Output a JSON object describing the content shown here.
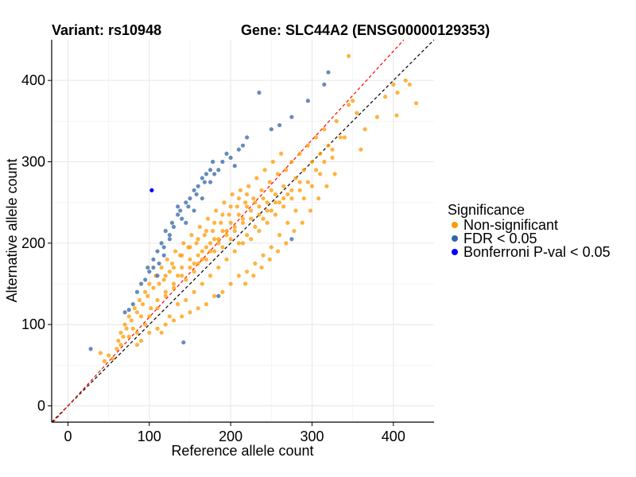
{
  "chart_data": {
    "type": "scatter",
    "title_left": "Variant: rs10948",
    "title_right": "Gene: SLC44A2 (ENSG00000129353)",
    "xlabel": "Reference allele count",
    "ylabel": "Alternative allele count",
    "xlim": [
      -20,
      450
    ],
    "ylim": [
      -20,
      450
    ],
    "x_ticks": [
      0,
      100,
      200,
      300,
      400
    ],
    "y_ticks": [
      0,
      100,
      200,
      300,
      400
    ],
    "grid": true,
    "legend": {
      "title": "Significance",
      "placement": "right",
      "entries": [
        {
          "key": "nonsig",
          "label": "Non-significant",
          "color": "#FF9900"
        },
        {
          "key": "fdr",
          "label": "FDR < 0.05",
          "color": "#3366A3"
        },
        {
          "key": "bonf",
          "label": "Bonferroni P-val < 0.05",
          "color": "#0000FF"
        }
      ]
    },
    "reference_lines": [
      {
        "name": "identity",
        "slope": 1.0,
        "intercept": 0,
        "color": "#000000",
        "dash": "dashed"
      },
      {
        "name": "fit",
        "slope": 1.09,
        "intercept": 0,
        "color": "#FF0000",
        "dash": "dashed"
      }
    ],
    "series": [
      {
        "name": "Non-significant",
        "color": "#FF9900",
        "points": [
          [
            40,
            65
          ],
          [
            45,
            55
          ],
          [
            50,
            62
          ],
          [
            55,
            58
          ],
          [
            60,
            70
          ],
          [
            62,
            80
          ],
          [
            65,
            90
          ],
          [
            68,
            85
          ],
          [
            70,
            100
          ],
          [
            72,
            95
          ],
          [
            75,
            110
          ],
          [
            78,
            105
          ],
          [
            80,
            95
          ],
          [
            82,
            120
          ],
          [
            85,
            115
          ],
          [
            88,
            130
          ],
          [
            90,
            110
          ],
          [
            92,
            125
          ],
          [
            95,
            140
          ],
          [
            98,
            135
          ],
          [
            100,
            150
          ],
          [
            102,
            120
          ],
          [
            105,
            145
          ],
          [
            108,
            160
          ],
          [
            110,
            130
          ],
          [
            112,
            150
          ],
          [
            115,
            170
          ],
          [
            118,
            155
          ],
          [
            120,
            140
          ],
          [
            122,
            180
          ],
          [
            125,
            165
          ],
          [
            128,
            175
          ],
          [
            130,
            150
          ],
          [
            132,
            190
          ],
          [
            135,
            160
          ],
          [
            138,
            185
          ],
          [
            140,
            170
          ],
          [
            142,
            200
          ],
          [
            145,
            155
          ],
          [
            148,
            195
          ],
          [
            150,
            180
          ],
          [
            152,
            210
          ],
          [
            155,
            165
          ],
          [
            158,
            200
          ],
          [
            160,
            175
          ],
          [
            162,
            220
          ],
          [
            165,
            190
          ],
          [
            168,
            210
          ],
          [
            170,
            180
          ],
          [
            172,
            230
          ],
          [
            175,
            200
          ],
          [
            178,
            215
          ],
          [
            180,
            190
          ],
          [
            182,
            240
          ],
          [
            185,
            205
          ],
          [
            188,
            225
          ],
          [
            190,
            195
          ],
          [
            192,
            250
          ],
          [
            195,
            215
          ],
          [
            198,
            235
          ],
          [
            200,
            205
          ],
          [
            202,
            260
          ],
          [
            205,
            220
          ],
          [
            208,
            245
          ],
          [
            210,
            200
          ],
          [
            212,
            265
          ],
          [
            215,
            230
          ],
          [
            218,
            250
          ],
          [
            220,
            210
          ],
          [
            222,
            270
          ],
          [
            225,
            240
          ],
          [
            228,
            255
          ],
          [
            230,
            220
          ],
          [
            232,
            280
          ],
          [
            235,
            245
          ],
          [
            238,
            265
          ],
          [
            240,
            230
          ],
          [
            242,
            290
          ],
          [
            245,
            250
          ],
          [
            248,
            275
          ],
          [
            250,
            240
          ],
          [
            252,
            300
          ],
          [
            255,
            260
          ],
          [
            258,
            285
          ],
          [
            260,
            250
          ],
          [
            262,
            310
          ],
          [
            265,
            270
          ],
          [
            268,
            290
          ],
          [
            270,
            260
          ],
          [
            275,
            300
          ],
          [
            280,
            280
          ],
          [
            285,
            310
          ],
          [
            290,
            290
          ],
          [
            295,
            320
          ],
          [
            300,
            300
          ],
          [
            305,
            330
          ],
          [
            310,
            310
          ],
          [
            315,
            340
          ],
          [
            320,
            320
          ],
          [
            330,
            350
          ],
          [
            340,
            330
          ],
          [
            345,
            370
          ],
          [
            350,
            375
          ],
          [
            355,
            360
          ],
          [
            360,
            315
          ],
          [
            365,
            340
          ],
          [
            380,
            355
          ],
          [
            390,
            380
          ],
          [
            400,
            395
          ],
          [
            405,
            385
          ],
          [
            415,
            400
          ],
          [
            420,
            395
          ],
          [
            428,
            372
          ],
          [
            404,
            357
          ],
          [
            345,
            430
          ],
          [
            335,
            330
          ],
          [
            325,
            305
          ],
          [
            310,
            285
          ],
          [
            300,
            270
          ],
          [
            290,
            255
          ],
          [
            280,
            240
          ],
          [
            270,
            225
          ],
          [
            260,
            210
          ],
          [
            250,
            195
          ],
          [
            240,
            185
          ],
          [
            230,
            175
          ],
          [
            220,
            165
          ],
          [
            210,
            160
          ],
          [
            200,
            150
          ],
          [
            190,
            140
          ],
          [
            180,
            135
          ],
          [
            170,
            125
          ],
          [
            160,
            120
          ],
          [
            150,
            115
          ],
          [
            140,
            110
          ],
          [
            130,
            105
          ],
          [
            120,
            100
          ],
          [
            110,
            95
          ],
          [
            100,
            90
          ],
          [
            90,
            80
          ],
          [
            85,
            75
          ],
          [
            115,
            90
          ],
          [
            125,
            110
          ],
          [
            135,
            125
          ],
          [
            145,
            130
          ],
          [
            155,
            140
          ],
          [
            165,
            150
          ],
          [
            175,
            160
          ],
          [
            185,
            170
          ],
          [
            195,
            180
          ],
          [
            205,
            190
          ],
          [
            215,
            200
          ],
          [
            225,
            205
          ],
          [
            235,
            215
          ],
          [
            245,
            225
          ],
          [
            255,
            235
          ],
          [
            265,
            245
          ],
          [
            275,
            255
          ],
          [
            285,
            265
          ],
          [
            295,
            275
          ],
          [
            305,
            290
          ],
          [
            315,
            300
          ],
          [
            325,
            315
          ],
          [
            218,
            150
          ],
          [
            228,
            160
          ],
          [
            238,
            170
          ],
          [
            248,
            180
          ],
          [
            258,
            190
          ],
          [
            268,
            200
          ],
          [
            278,
            215
          ],
          [
            288,
            225
          ],
          [
            298,
            240
          ],
          [
            308,
            255
          ],
          [
            318,
            270
          ],
          [
            328,
            285
          ],
          [
            120,
            160
          ],
          [
            130,
            170
          ],
          [
            140,
            185
          ],
          [
            150,
            195
          ],
          [
            160,
            205
          ],
          [
            170,
            215
          ],
          [
            180,
            225
          ],
          [
            190,
            235
          ],
          [
            200,
            245
          ],
          [
            210,
            255
          ],
          [
            220,
            260
          ],
          [
            160,
            185
          ],
          [
            170,
            195
          ],
          [
            180,
            205
          ],
          [
            190,
            215
          ],
          [
            200,
            225
          ],
          [
            210,
            235
          ],
          [
            220,
            245
          ],
          [
            230,
            250
          ],
          [
            240,
            255
          ],
          [
            250,
            265
          ],
          [
            150,
            170
          ],
          [
            140,
            160
          ],
          [
            130,
            145
          ],
          [
            120,
            135
          ],
          [
            110,
            120
          ],
          [
            100,
            110
          ],
          [
            95,
            100
          ],
          [
            85,
            90
          ],
          [
            75,
            85
          ],
          [
            65,
            75
          ],
          [
            155,
            175
          ],
          [
            165,
            180
          ],
          [
            175,
            190
          ],
          [
            185,
            200
          ],
          [
            195,
            210
          ],
          [
            205,
            215
          ],
          [
            215,
            225
          ],
          [
            225,
            230
          ],
          [
            235,
            235
          ],
          [
            245,
            240
          ],
          [
            255,
            250
          ],
          [
            265,
            255
          ],
          [
            275,
            265
          ],
          [
            285,
            275
          ]
        ]
      },
      {
        "name": "FDR < 0.05",
        "color": "#3366A3",
        "points": [
          [
            28,
            70
          ],
          [
            70,
            115
          ],
          [
            75,
            118
          ],
          [
            80,
            125
          ],
          [
            85,
            140
          ],
          [
            90,
            150
          ],
          [
            95,
            155
          ],
          [
            98,
            170
          ],
          [
            100,
            165
          ],
          [
            105,
            180
          ],
          [
            110,
            190
          ],
          [
            112,
            175
          ],
          [
            115,
            200
          ],
          [
            118,
            195
          ],
          [
            120,
            215
          ],
          [
            125,
            210
          ],
          [
            128,
            225
          ],
          [
            130,
            220
          ],
          [
            135,
            235
          ],
          [
            138,
            240
          ],
          [
            140,
            230
          ],
          [
            145,
            250
          ],
          [
            148,
            245
          ],
          [
            150,
            255
          ],
          [
            155,
            265
          ],
          [
            158,
            260
          ],
          [
            160,
            270
          ],
          [
            165,
            280
          ],
          [
            168,
            275
          ],
          [
            170,
            285
          ],
          [
            175,
            290
          ],
          [
            178,
            300
          ],
          [
            180,
            285
          ],
          [
            185,
            290
          ],
          [
            190,
            300
          ],
          [
            195,
            310
          ],
          [
            200,
            305
          ],
          [
            205,
            295
          ],
          [
            210,
            315
          ],
          [
            215,
            320
          ],
          [
            220,
            330
          ],
          [
            235,
            385
          ],
          [
            250,
            340
          ],
          [
            260,
            345
          ],
          [
            275,
            355
          ],
          [
            295,
            375
          ],
          [
            315,
            395
          ],
          [
            320,
            410
          ],
          [
            185,
            135
          ],
          [
            142,
            78
          ],
          [
            165,
            255
          ],
          [
            145,
            225
          ],
          [
            125,
            205
          ],
          [
            118,
            185
          ],
          [
            135,
            245
          ],
          [
            155,
            240
          ],
          [
            175,
            275
          ],
          [
            110,
            160
          ],
          [
            105,
            170
          ],
          [
            275,
            205
          ]
        ]
      },
      {
        "name": "Bonferroni P-val < 0.05",
        "color": "#0000FF",
        "points": [
          [
            103,
            265
          ]
        ]
      }
    ]
  }
}
